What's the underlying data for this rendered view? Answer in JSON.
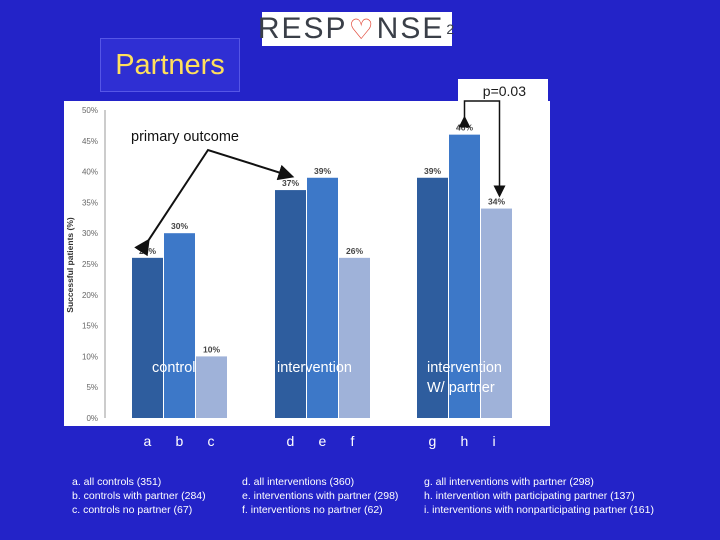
{
  "header": {
    "logo_text": "RESPONSE²",
    "logo_parts": [
      "RESP",
      "NSE"
    ],
    "logo_superscript": "2",
    "slide_title": "Partners",
    "pvalue_label": "p=0.03"
  },
  "chart_data": {
    "type": "bar",
    "ylabel": "Successful patients (%)",
    "ylim": [
      0,
      50
    ],
    "y_ticks": [
      "0%",
      "5%",
      "10%",
      "15%",
      "20%",
      "25%",
      "30%",
      "35%",
      "40%",
      "45%",
      "50%"
    ],
    "annotation": "primary outcome",
    "groups": [
      {
        "label": "control",
        "bars": [
          {
            "letter": "a",
            "value": 26,
            "label": "26%",
            "color": "#2e5d9e"
          },
          {
            "letter": "b",
            "value": 30,
            "label": "30%",
            "color": "#3d78c8"
          },
          {
            "letter": "c",
            "value": 10,
            "label": "10%",
            "color": "#9fb2d9"
          }
        ]
      },
      {
        "label": "intervention",
        "bars": [
          {
            "letter": "d",
            "value": 37,
            "label": "37%",
            "color": "#2e5d9e"
          },
          {
            "letter": "e",
            "value": 39,
            "label": "39%",
            "color": "#3d78c8"
          },
          {
            "letter": "f",
            "value": 26,
            "label": "26%",
            "color": "#9fb2d9"
          }
        ]
      },
      {
        "label": "intervention W/ partner",
        "label_lines": [
          "intervention",
          "W/ partner"
        ],
        "bars": [
          {
            "letter": "g",
            "value": 39,
            "label": "39%",
            "color": "#2e5d9e"
          },
          {
            "letter": "h",
            "value": 46,
            "label": "46%",
            "color": "#3d78c8"
          },
          {
            "letter": "i",
            "value": 34,
            "label": "34%",
            "color": "#9fb2d9"
          }
        ]
      }
    ]
  },
  "legend": {
    "col1": [
      "a. all controls (351)",
      "b. controls with partner (284)",
      "c. controls no partner (67)"
    ],
    "col2": [
      "d. all interventions (360)",
      "e. interventions with partner (298)",
      "f. interventions no partner (62)"
    ],
    "col3": [
      "g. all interventions with partner (298)",
      "h. intervention with participating partner (137)",
      "i. interventions with nonparticipating partner (161)"
    ]
  }
}
